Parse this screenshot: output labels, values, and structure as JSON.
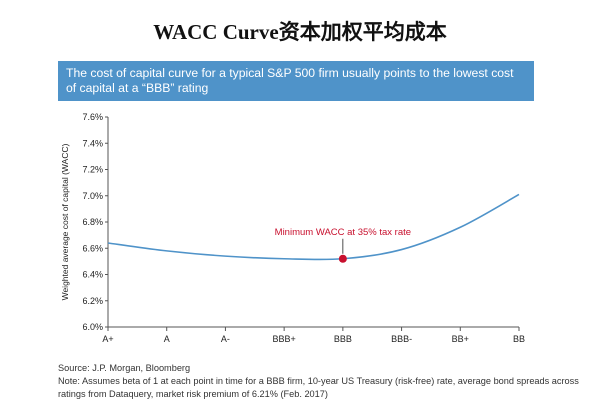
{
  "title": "WACC Curve资本加权平均成本",
  "banner": "The cost of capital curve for a typical S&P 500 firm usually points to the lowest cost of capital at a “BBB” rating",
  "source": "Source: J.P. Morgan, Bloomberg",
  "note": "Note: Assumes beta of 1 at each point in time for a BBB firm, 10-year US Treasury (risk-free) rate, average bond spreads across ratings from Dataquery, market risk premium of 6.21% (Feb. 2017)",
  "chart_data": {
    "type": "line",
    "categories": [
      "A+",
      "A",
      "A-",
      "BBB+",
      "BBB",
      "BBB-",
      "BB+",
      "BB"
    ],
    "series": [
      {
        "name": "",
        "values": [
          6.64,
          6.58,
          6.54,
          6.52,
          6.52,
          6.59,
          6.76,
          7.01
        ]
      }
    ],
    "xlabel": "",
    "ylabel": "Weighted average cost of capital (WACC)",
    "ylim": [
      6.0,
      7.6
    ],
    "yticks": [
      6.0,
      6.2,
      6.4,
      6.6,
      6.8,
      7.0,
      7.2,
      7.4,
      7.6
    ],
    "ytick_labels": [
      "6.0%",
      "6.2%",
      "6.4%",
      "6.6%",
      "6.8%",
      "7.0%",
      "7.2%",
      "7.4%",
      "7.6%"
    ],
    "grid": false,
    "line_color": "#4f93c9",
    "highlight": {
      "category": "BBB",
      "value": 6.52,
      "label": "Minimum WACC at 35% tax rate",
      "color": "#c8102e"
    }
  }
}
